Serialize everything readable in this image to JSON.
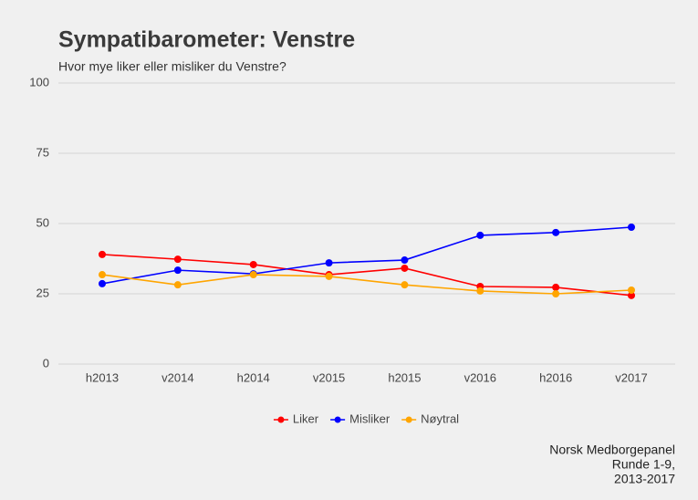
{
  "chart_data": {
    "type": "line",
    "title": "Sympatibarometer: Venstre",
    "subtitle": "Hvor mye liker eller misliker du Venstre?",
    "categories": [
      "h2013",
      "v2014",
      "h2014",
      "v2015",
      "h2015",
      "v2016",
      "h2016",
      "v2017"
    ],
    "series": [
      {
        "name": "Liker",
        "color": "#ff0000",
        "values": [
          39.0,
          37.3,
          35.4,
          31.8,
          34.1,
          27.6,
          27.3,
          24.4
        ]
      },
      {
        "name": "Misliker",
        "color": "#0000ff",
        "values": [
          28.6,
          33.4,
          32.1,
          36.0,
          37.0,
          45.8,
          46.8,
          48.7
        ]
      },
      {
        "name": "Nøytral",
        "color": "#ffa500",
        "values": [
          31.8,
          28.2,
          31.8,
          31.2,
          28.2,
          26.0,
          25.0,
          26.3
        ]
      }
    ],
    "ylim": [
      0,
      100
    ],
    "yticks": [
      0,
      25,
      50,
      75,
      100
    ],
    "grid": true,
    "legend": "bottom",
    "caption": [
      "Norsk Medborgepanel",
      "Runde 1-9,",
      "2013-2017"
    ]
  }
}
